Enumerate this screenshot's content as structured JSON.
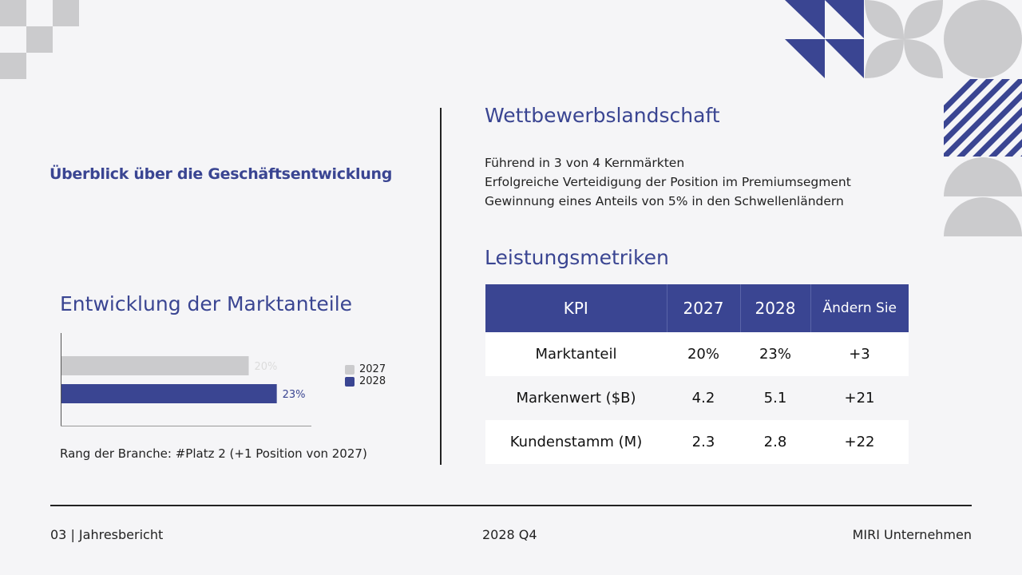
{
  "colors": {
    "accent": "#3a4592",
    "gray": "#cbcbcd",
    "background": "#f5f5f7"
  },
  "heading": "Überblick über die Geschäftsentwicklung",
  "competition": {
    "title": "Wettbewerbslandschaft",
    "lines": [
      "Führend in 3 von 4 Kernmärkten",
      "Erfolgreiche Verteidigung der Position im Premiumsegment",
      "Gewinnung eines Anteils von 5% in den Schwellenländern"
    ]
  },
  "metrics": {
    "title": "Leistungsmetriken",
    "headers": [
      "KPI",
      "2027",
      "2028",
      "Ändern Sie"
    ],
    "rows": [
      [
        "Marktanteil",
        "20%",
        "23%",
        "+3"
      ],
      [
        "Markenwert ($B)",
        "4.2",
        "5.1",
        "+21"
      ],
      [
        "Kundenstamm (M)",
        "2.3",
        "2.8",
        "+22"
      ]
    ]
  },
  "market": {
    "title": "Entwicklung der Marktanteile",
    "rank": "Rang der Branche: #Platz 2 (+1 Position von 2027)"
  },
  "chart_data": {
    "type": "bar",
    "orientation": "horizontal",
    "categories": [
      "2027",
      "2028"
    ],
    "values": [
      20,
      23
    ],
    "labels": [
      "20%",
      "23%"
    ],
    "colors": [
      "#cbcbcd",
      "#3a4592"
    ],
    "xlim": [
      0,
      29
    ],
    "legend": "right",
    "grid": false
  },
  "footer": {
    "left": "03 | Jahresbericht",
    "center": "2028 Q4",
    "right": "MIRI Unternehmen"
  }
}
